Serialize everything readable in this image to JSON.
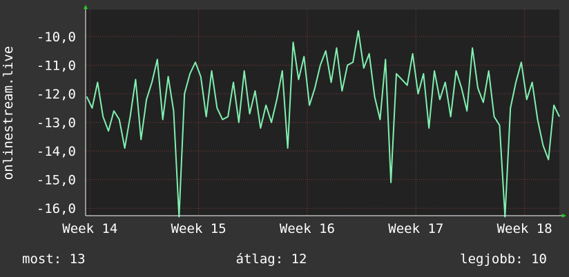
{
  "chart_data": {
    "type": "line",
    "y_label": "onlinestream.live",
    "x": [
      13.97,
      14.02,
      14.07,
      14.12,
      14.17,
      14.22,
      14.27,
      14.32,
      14.37,
      14.42,
      14.47,
      14.52,
      14.57,
      14.62,
      14.67,
      14.72,
      14.77,
      14.82,
      14.87,
      14.92,
      14.97,
      15.02,
      15.07,
      15.12,
      15.17,
      15.22,
      15.27,
      15.32,
      15.37,
      15.42,
      15.47,
      15.52,
      15.57,
      15.62,
      15.67,
      15.72,
      15.77,
      15.82,
      15.87,
      15.92,
      15.97,
      16.02,
      16.07,
      16.12,
      16.17,
      16.22,
      16.27,
      16.32,
      16.37,
      16.42,
      16.47,
      16.52,
      16.57,
      16.62,
      16.67,
      16.72,
      16.77,
      16.82,
      16.87,
      16.92,
      16.97,
      17.02,
      17.07,
      17.12,
      17.17,
      17.22,
      17.27,
      17.32,
      17.37,
      17.42,
      17.47,
      17.52,
      17.57,
      17.62,
      17.67,
      17.72,
      17.77,
      17.82,
      17.87,
      17.92,
      17.97,
      18.02,
      18.07,
      18.12,
      18.17,
      18.22,
      18.27,
      18.32
    ],
    "series": [
      {
        "color": "#80f0b0",
        "values": [
          -12.1,
          -12.5,
          -11.6,
          -12.8,
          -13.3,
          -12.6,
          -12.9,
          -13.9,
          -12.8,
          -11.5,
          -13.6,
          -12.2,
          -11.6,
          -10.8,
          -12.9,
          -11.4,
          -12.6,
          -16.3,
          -12.0,
          -11.3,
          -10.9,
          -11.4,
          -12.8,
          -11.2,
          -12.5,
          -12.9,
          -12.8,
          -11.6,
          -13.0,
          -11.2,
          -12.7,
          -11.9,
          -13.2,
          -12.4,
          -13.0,
          -12.2,
          -11.2,
          -13.9,
          -10.2,
          -11.5,
          -10.7,
          -12.4,
          -11.8,
          -11.0,
          -10.5,
          -11.6,
          -10.4,
          -11.9,
          -11.0,
          -10.9,
          -9.8,
          -11.1,
          -10.6,
          -12.1,
          -12.9,
          -10.8,
          -15.1,
          -11.3,
          -11.5,
          -11.7,
          -10.6,
          -12.0,
          -11.3,
          -13.2,
          -11.2,
          -12.2,
          -11.6,
          -12.8,
          -11.2,
          -11.8,
          -12.6,
          -10.4,
          -11.8,
          -12.3,
          -11.2,
          -12.8,
          -13.1,
          -16.3,
          -12.5,
          -11.6,
          -10.9,
          -12.2,
          -11.6,
          -12.9,
          -13.8,
          -14.3,
          -12.4,
          -12.8
        ]
      }
    ],
    "xlim": [
      13.96,
      18.32
    ],
    "xticks": [
      {
        "value": 14,
        "label": "Week 14"
      },
      {
        "value": 15,
        "label": "Week 15"
      },
      {
        "value": 16,
        "label": "Week 16"
      },
      {
        "value": 17,
        "label": "Week 17"
      },
      {
        "value": 18,
        "label": "Week 18"
      }
    ],
    "ylim": [
      -16.26,
      -9.06
    ],
    "yticks": [
      {
        "value": -10,
        "label": "-10,0"
      },
      {
        "value": -11,
        "label": "-11,0"
      },
      {
        "value": -12,
        "label": "-12,0"
      },
      {
        "value": -13,
        "label": "-13,0"
      },
      {
        "value": -14,
        "label": "-14,0"
      },
      {
        "value": -15,
        "label": "-15,0"
      },
      {
        "value": -16,
        "label": "-16,0"
      }
    ],
    "grid": true,
    "stats": [
      "most: 13",
      "átlag: 12",
      "legjobb: 10"
    ]
  }
}
